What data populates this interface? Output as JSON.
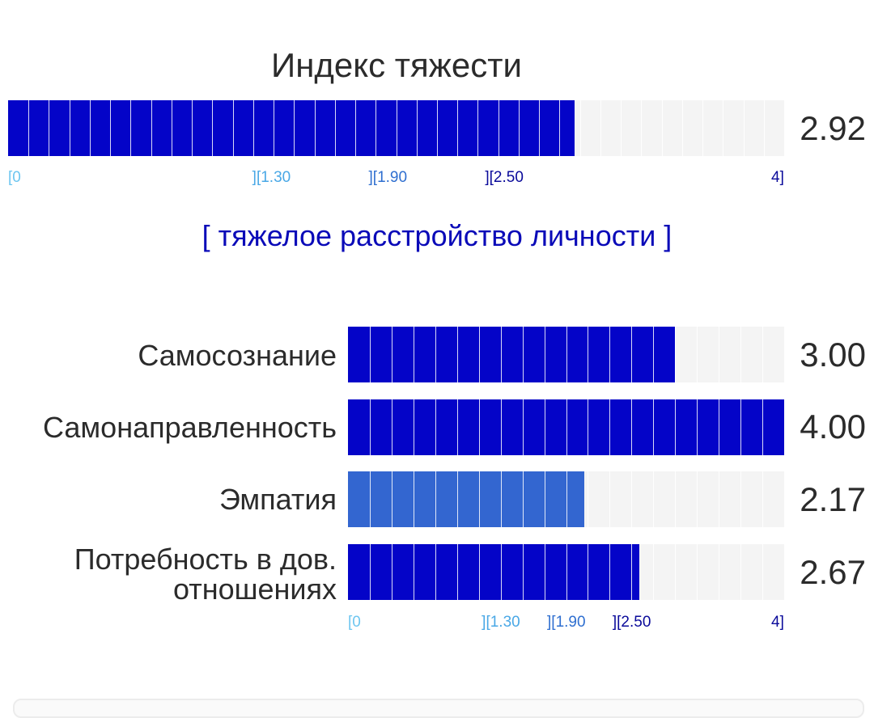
{
  "title": "Индекс тяжести",
  "index": {
    "value": 2.92,
    "value_label": "2.92",
    "max": 4,
    "fill_color": "#0404c8"
  },
  "scale": {
    "labels": [
      {
        "text": "[0",
        "value": 0,
        "color": "#6ec6f0"
      },
      {
        "text": "][1.30",
        "value": 1.3,
        "color": "#4aa8e6"
      },
      {
        "text": "][1.90",
        "value": 1.9,
        "color": "#2f6fd0"
      },
      {
        "text": "][2.50",
        "value": 2.5,
        "color": "#0a0a9a"
      },
      {
        "text": "4]",
        "value": 4,
        "color": "#0a0a9a"
      }
    ]
  },
  "category_label": "[ тяжелое расстройство личности ]",
  "category_color": "#0a0ab8",
  "rows": [
    {
      "label": "Самосознание",
      "value": 3.0,
      "value_label": "3.00",
      "fill_color": "#0404c8"
    },
    {
      "label": "Самонаправленность",
      "value": 4.0,
      "value_label": "4.00",
      "fill_color": "#0404c8"
    },
    {
      "label": "Эмпатия",
      "value": 2.17,
      "value_label": "2.17",
      "fill_color": "#3366d0"
    },
    {
      "label": "Потребность в дов. отношениях",
      "value": 2.67,
      "value_label": "2.67",
      "fill_color": "#0404c8"
    }
  ]
}
